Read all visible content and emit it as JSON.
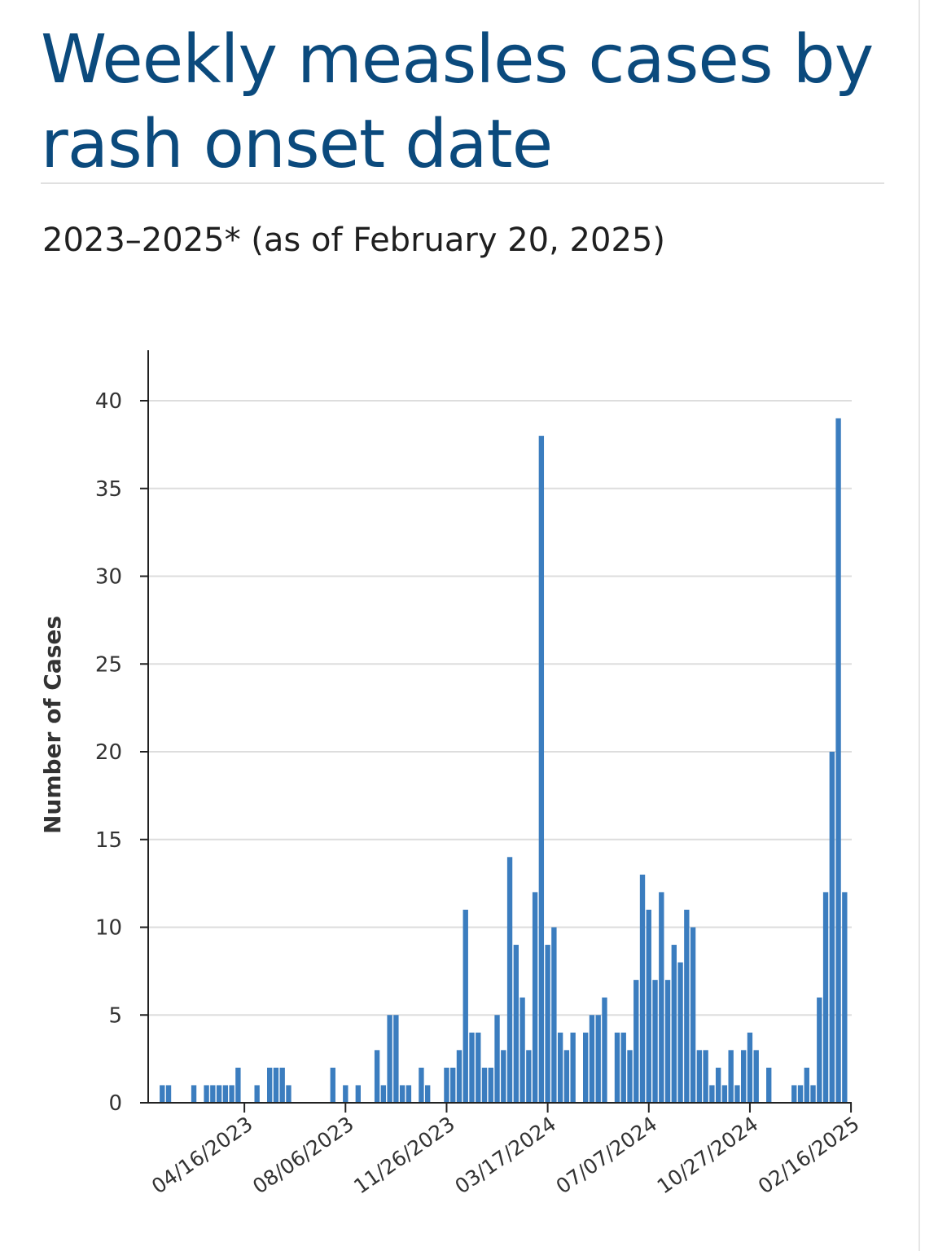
{
  "title": "Weekly measles cases by rash onset date",
  "subtitle": "2023–2025* (as of February 20, 2025)",
  "colors": {
    "title": "#0b4a7d",
    "bar": "#3b7dbf",
    "grid": "#dddddd",
    "axis": "#222222"
  },
  "chart_data": {
    "type": "bar",
    "ylabel": "Number of Cases",
    "xlabel": "",
    "ylim": [
      0,
      40
    ],
    "yticks": [
      0,
      5,
      10,
      15,
      20,
      25,
      30,
      35,
      40
    ],
    "grid": true,
    "first_week": "01/08/2023",
    "week_interval_days": 7,
    "xtick_labels": [
      "04/16/2023",
      "08/06/2023",
      "11/26/2023",
      "03/17/2024",
      "07/07/2024",
      "10/27/2024",
      "02/16/2025"
    ],
    "values": [
      0,
      1,
      1,
      0,
      0,
      0,
      1,
      0,
      1,
      1,
      1,
      1,
      1,
      2,
      0,
      0,
      1,
      0,
      2,
      2,
      2,
      1,
      0,
      0,
      0,
      0,
      0,
      0,
      2,
      0,
      1,
      0,
      1,
      0,
      0,
      3,
      1,
      5,
      5,
      1,
      1,
      0,
      2,
      1,
      0,
      0,
      2,
      2,
      3,
      11,
      4,
      4,
      2,
      2,
      5,
      3,
      14,
      9,
      6,
      3,
      12,
      38,
      9,
      10,
      4,
      3,
      4,
      0,
      4,
      5,
      5,
      6,
      0,
      4,
      4,
      3,
      7,
      13,
      11,
      7,
      12,
      7,
      9,
      8,
      11,
      10,
      3,
      3,
      1,
      2,
      1,
      3,
      1,
      3,
      4,
      3,
      0,
      2,
      0,
      0,
      0,
      1,
      1,
      2,
      1,
      6,
      12,
      20,
      39,
      12
    ]
  }
}
